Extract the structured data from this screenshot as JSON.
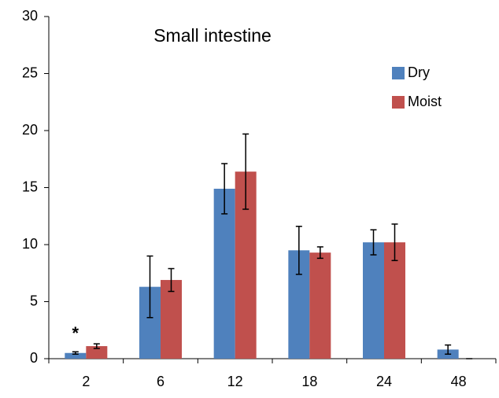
{
  "chart_data": {
    "type": "bar",
    "title": "Small intestine",
    "categories": [
      "2",
      "6",
      "12",
      "18",
      "24",
      "48"
    ],
    "series": [
      {
        "name": "Dry",
        "color": "#4f81bd",
        "values": [
          0.5,
          6.3,
          14.9,
          9.5,
          10.2,
          0.8
        ],
        "errors": [
          0.1,
          2.7,
          2.2,
          2.1,
          1.1,
          0.4
        ]
      },
      {
        "name": "Moist",
        "color": "#c0504d",
        "values": [
          1.1,
          6.9,
          16.4,
          9.3,
          10.2,
          0
        ],
        "errors": [
          0.2,
          1.0,
          3.3,
          0.5,
          1.6,
          0
        ]
      }
    ],
    "annotations": [
      "*"
    ],
    "ylim": [
      0,
      30
    ],
    "yticks": [
      0,
      5,
      10,
      15,
      20,
      25,
      30
    ],
    "grid": false,
    "legend": "upper right"
  }
}
